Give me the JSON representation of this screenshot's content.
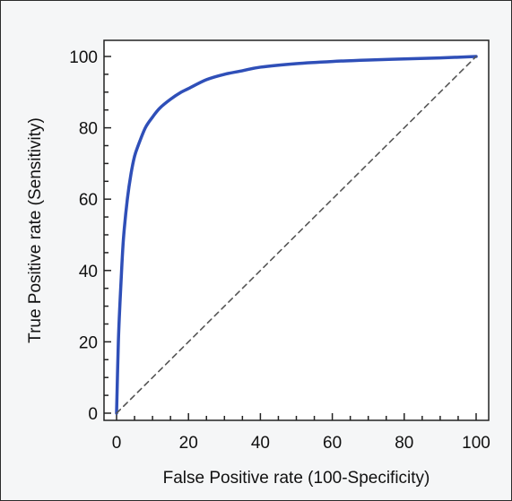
{
  "chart_data": {
    "type": "line",
    "title": "",
    "xlabel": "False Positive rate (100-Specificity)",
    "ylabel": "True Positive rate (Sensitivity)",
    "xlim": [
      0,
      100
    ],
    "ylim": [
      0,
      100
    ],
    "x_ticks": [
      0,
      20,
      40,
      60,
      80,
      100
    ],
    "y_ticks": [
      0,
      20,
      40,
      60,
      80,
      100
    ],
    "x_tick_labels": [
      "0",
      "20",
      "40",
      "60",
      "80",
      "100"
    ],
    "y_tick_labels": [
      "0",
      "20",
      "40",
      "60",
      "80",
      "100"
    ],
    "grid": false,
    "legend": "none",
    "series": [
      {
        "style": "solid",
        "color": "#2f4fb8",
        "x": [
          0,
          0.5,
          1,
          1.5,
          2,
          3,
          4,
          5,
          6,
          8,
          10,
          12,
          15,
          18,
          20,
          25,
          30,
          35,
          40,
          50,
          60,
          70,
          80,
          90,
          100
        ],
        "y": [
          0,
          20,
          32,
          42,
          50,
          60,
          67,
          72,
          75,
          80,
          83,
          85.5,
          88,
          90,
          91,
          93.5,
          95,
          96,
          97,
          98,
          98.6,
          99,
          99.3,
          99.6,
          100
        ]
      },
      {
        "style": "dashed",
        "color": "#555555",
        "x": [
          0,
          100
        ],
        "y": [
          0,
          100
        ]
      }
    ]
  }
}
